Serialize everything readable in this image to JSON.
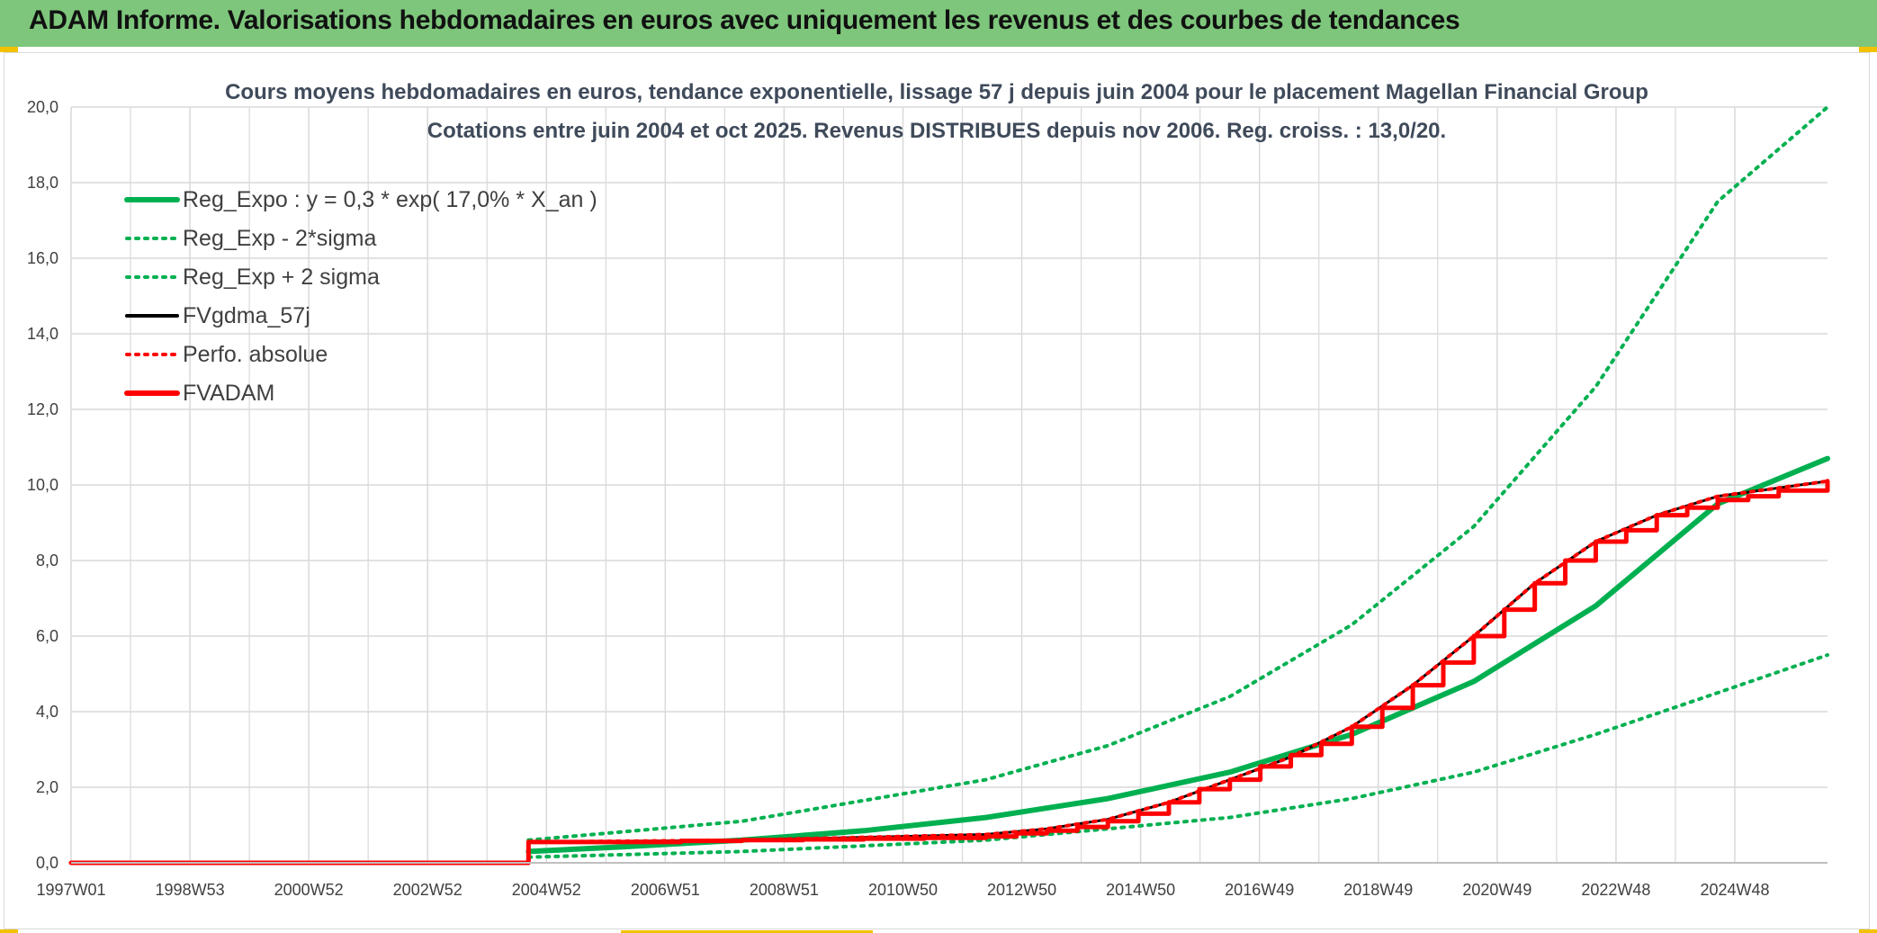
{
  "banner": {
    "title": "ADAM Informe. Valorisations hebdomadaires en euros avec uniquement les revenus et des courbes de tendances"
  },
  "colors": {
    "banner_bg": "#7dc67b",
    "accent": "#f2c200",
    "green": "#00b050",
    "red": "#ff0000",
    "black": "#000000",
    "grid": "#d9d9d9"
  },
  "chart_data": {
    "type": "line",
    "title_line1": "Cours moyens hebdomadaires en euros, tendance exponentielle, lissage 57 j depuis juin 2004 pour le placement Magellan Financial Group",
    "title_line2": "Cotations entre juin 2004 et oct 2025. Revenus DISTRIBUES depuis nov 2006. Reg. croiss. : 13,0/20.",
    "x_tick_labels": [
      "1997W01",
      "1998W53",
      "2000W52",
      "2002W52",
      "2004W52",
      "2006W51",
      "2008W51",
      "2010W50",
      "2012W50",
      "2014W50",
      "2016W49",
      "2018W49",
      "2020W49",
      "2022W48",
      "2024W48"
    ],
    "x_range": [
      1997.0,
      2025.8
    ],
    "ylim": [
      0,
      20
    ],
    "y_ticks": [
      0,
      2,
      4,
      6,
      8,
      10,
      12,
      14,
      16,
      18,
      20
    ],
    "y_tick_labels": [
      "0,0",
      "2,0",
      "4,0",
      "6,0",
      "8,0",
      "10,0",
      "12,0",
      "14,0",
      "16,0",
      "18,0",
      "20,0"
    ],
    "grid": true,
    "legend_position": "top-left",
    "series": [
      {
        "name": "Reg_Expo : y = 0,3 * exp( 17,0% *  X_an )",
        "style": "solid",
        "color": "#00b050",
        "x": [
          2004.5,
          2006,
          2008,
          2010,
          2012,
          2014,
          2016,
          2018,
          2020,
          2022,
          2024,
          2025.8
        ],
        "y": [
          0.3,
          0.42,
          0.6,
          0.85,
          1.2,
          1.7,
          2.4,
          3.4,
          4.8,
          6.8,
          9.5,
          10.7
        ]
      },
      {
        "name": "Reg_Exp - 2*sigma",
        "style": "dotted",
        "color": "#00b050",
        "x": [
          2004.5,
          2008,
          2012,
          2016,
          2018,
          2020,
          2022,
          2024,
          2025.8
        ],
        "y": [
          0.15,
          0.3,
          0.6,
          1.2,
          1.7,
          2.4,
          3.4,
          4.5,
          5.5
        ]
      },
      {
        "name": "Reg_Exp + 2 sigma",
        "style": "dotted",
        "color": "#00b050",
        "x": [
          2004.5,
          2008,
          2012,
          2014,
          2016,
          2018,
          2020,
          2022,
          2024,
          2025.8
        ],
        "y": [
          0.6,
          1.1,
          2.2,
          3.1,
          4.4,
          6.3,
          8.9,
          12.6,
          17.5,
          20.0
        ]
      },
      {
        "name": "FVgdma_57j",
        "style": "solid",
        "color": "#000000",
        "x": [
          1997.0,
          2004.5,
          2004.5,
          2008,
          2012,
          2013,
          2014,
          2015,
          2016,
          2017,
          2018,
          2019,
          2020,
          2021,
          2022,
          2023,
          2024,
          2025.8
        ],
        "y": [
          0,
          0,
          0.55,
          0.6,
          0.75,
          0.9,
          1.15,
          1.6,
          2.2,
          2.8,
          3.6,
          4.7,
          6.0,
          7.4,
          8.5,
          9.2,
          9.7,
          10.1
        ]
      },
      {
        "name": "Perfo. absolue",
        "style": "dotted",
        "color": "#ff0000",
        "x": [
          1997.0,
          2004.5,
          2004.5,
          2008,
          2012,
          2013,
          2014,
          2015,
          2016,
          2017,
          2018,
          2019,
          2020,
          2021,
          2022,
          2023,
          2024,
          2025.8
        ],
        "y": [
          0,
          0,
          0.55,
          0.6,
          0.75,
          0.9,
          1.15,
          1.6,
          2.2,
          2.8,
          3.6,
          4.7,
          6.0,
          7.4,
          8.5,
          9.2,
          9.7,
          10.1
        ]
      },
      {
        "name": "FVADAM",
        "style": "step",
        "color": "#ff0000",
        "x": [
          1997.0,
          2004.5,
          2004.5,
          2006,
          2007,
          2008,
          2009,
          2010,
          2011,
          2012,
          2012.5,
          2013,
          2013.5,
          2014,
          2014.5,
          2015,
          2015.5,
          2016,
          2016.5,
          2017,
          2017.5,
          2018,
          2018.5,
          2019,
          2019.5,
          2020,
          2020.5,
          2021,
          2021.5,
          2022,
          2022.5,
          2023,
          2023.5,
          2024,
          2024.5,
          2025,
          2025.8
        ],
        "y": [
          0,
          0,
          0.55,
          0.55,
          0.58,
          0.6,
          0.62,
          0.64,
          0.66,
          0.7,
          0.78,
          0.85,
          0.95,
          1.1,
          1.3,
          1.6,
          1.95,
          2.2,
          2.55,
          2.85,
          3.15,
          3.6,
          4.1,
          4.7,
          5.3,
          6.0,
          6.7,
          7.4,
          8.0,
          8.5,
          8.8,
          9.2,
          9.4,
          9.6,
          9.7,
          9.85,
          10.1
        ]
      }
    ]
  }
}
